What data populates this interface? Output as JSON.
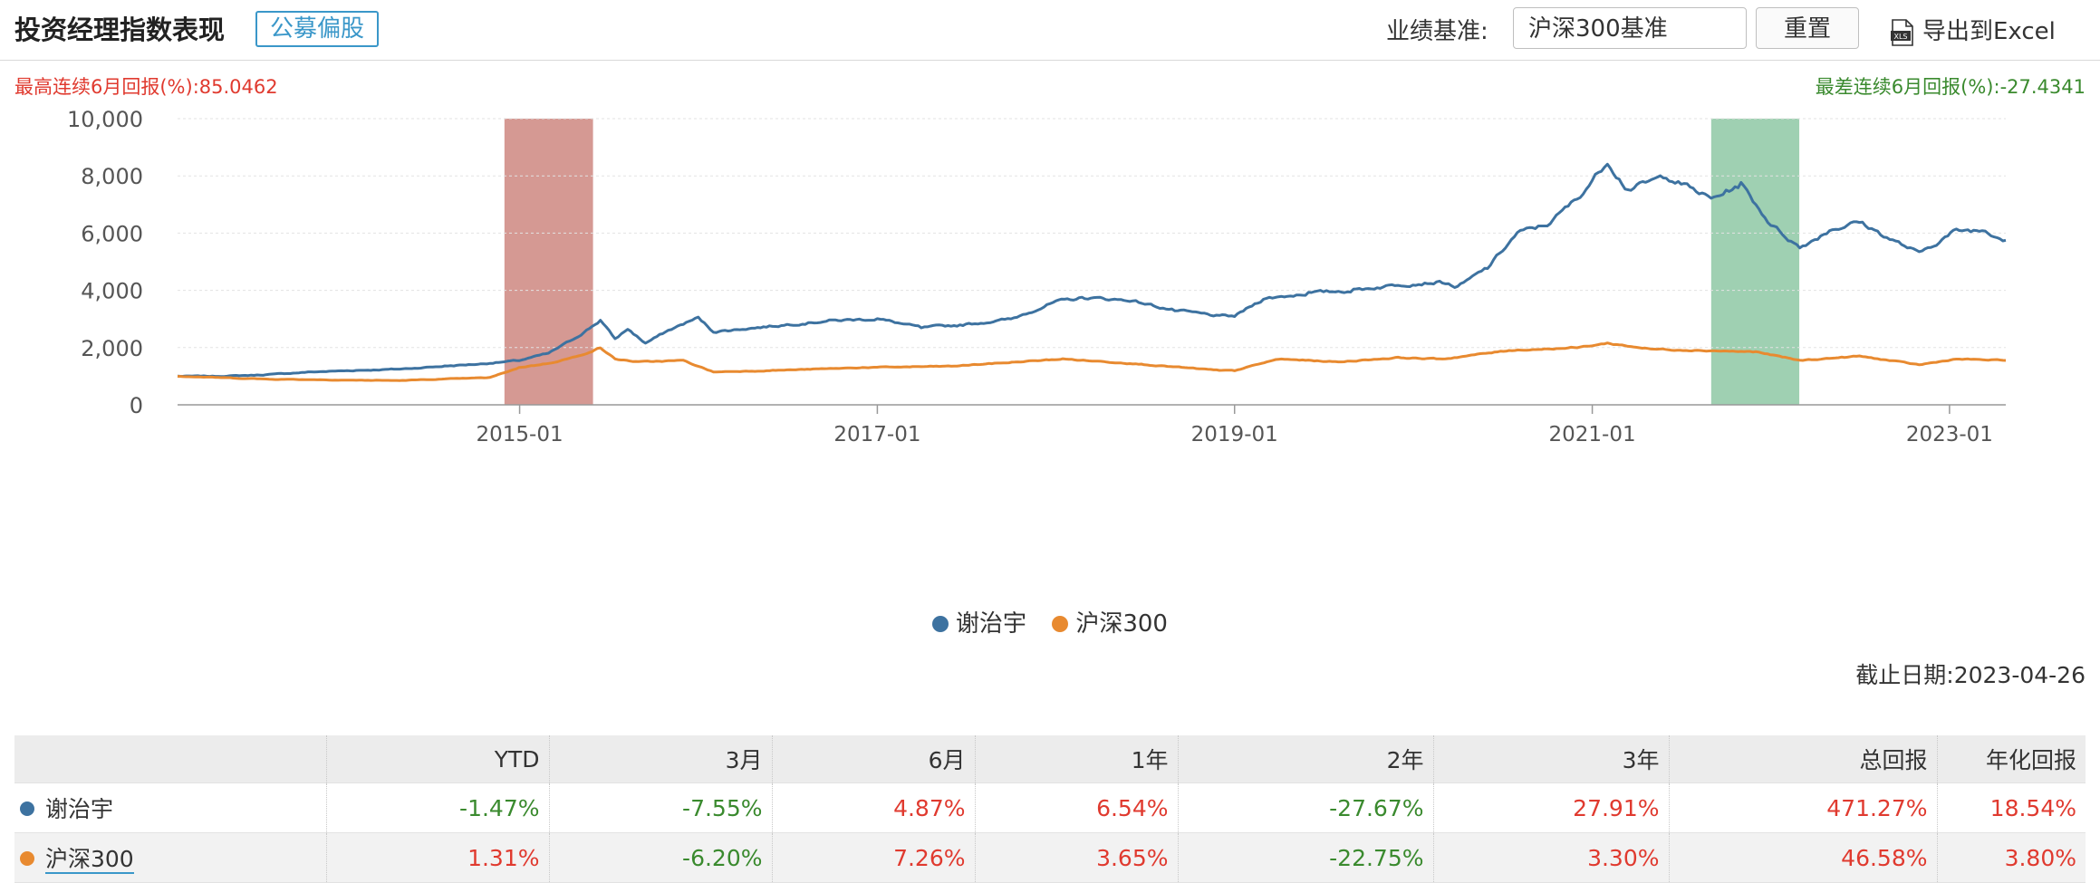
{
  "header": {
    "title": "投资经理指数表现",
    "tag": "公募偏股",
    "benchmark_label": "业绩基准:",
    "benchmark_value": "沪深300基准",
    "reset_label": "重置",
    "export_label": "导出到Excel"
  },
  "summary": {
    "best": "最高连续6月回报(%):85.0462",
    "worst": "最差连续6月回报(%):-27.4341"
  },
  "colors": {
    "manager": "#3d72a0",
    "index": "#e88a30",
    "best_band": "#d59993",
    "worst_band": "#9fd0b2",
    "up": "#e03a2f",
    "down": "#3a8a2e"
  },
  "legend": {
    "manager": "谢治宇",
    "index": "沪深300"
  },
  "asof": "截止日期:2023-04-26",
  "table": {
    "headers": [
      "",
      "YTD",
      "3月",
      "6月",
      "1年",
      "2年",
      "3年",
      "总回报",
      "年化回报"
    ],
    "rows": [
      {
        "name": "谢治宇",
        "values": [
          "-1.47%",
          "-7.55%",
          "4.87%",
          "6.54%",
          "-27.67%",
          "27.91%",
          "471.27%",
          "18.54%"
        ]
      },
      {
        "name": "沪深300",
        "values": [
          "1.31%",
          "-6.20%",
          "7.26%",
          "3.65%",
          "-22.75%",
          "3.30%",
          "46.58%",
          "3.80%"
        ]
      }
    ]
  },
  "chart_data": {
    "type": "line",
    "x_range": [
      "2013-02-01",
      "2023-04-26"
    ],
    "ylim": [
      0,
      10000
    ],
    "yticks": [
      "0",
      "2,000",
      "4,000",
      "6,000",
      "8,000",
      "10,000"
    ],
    "xticks": [
      {
        "date": "2015-01-01",
        "label": "2015-01"
      },
      {
        "date": "2017-01-01",
        "label": "2017-01"
      },
      {
        "date": "2019-01-01",
        "label": "2019-01"
      },
      {
        "date": "2021-01-01",
        "label": "2021-01"
      },
      {
        "date": "2023-01-01",
        "label": "2023-01"
      }
    ],
    "grid": true,
    "legend_position": "bottom",
    "bands": [
      {
        "from": "2014-12-01",
        "to": "2015-05-31",
        "label": "best",
        "color": "#d59993"
      },
      {
        "from": "2021-09-01",
        "to": "2022-02-28",
        "label": "worst",
        "color": "#9fd0b2"
      }
    ],
    "series": [
      {
        "name": "谢治宇",
        "color": "#3d72a0",
        "points": [
          [
            "2013-02-01",
            1000
          ],
          [
            "2013-05-01",
            1000
          ],
          [
            "2013-08-01",
            1050
          ],
          [
            "2013-11-01",
            1150
          ],
          [
            "2014-02-01",
            1200
          ],
          [
            "2014-05-01",
            1250
          ],
          [
            "2014-08-01",
            1350
          ],
          [
            "2014-11-01",
            1450
          ],
          [
            "2014-12-31",
            1550
          ],
          [
            "2015-03-01",
            1800
          ],
          [
            "2015-05-01",
            2400
          ],
          [
            "2015-06-15",
            2950
          ],
          [
            "2015-07-15",
            2300
          ],
          [
            "2015-08-10",
            2650
          ],
          [
            "2015-09-15",
            2150
          ],
          [
            "2015-11-01",
            2600
          ],
          [
            "2016-01-01",
            3050
          ],
          [
            "2016-02-01",
            2550
          ],
          [
            "2016-04-01",
            2650
          ],
          [
            "2016-07-01",
            2800
          ],
          [
            "2016-10-01",
            2950
          ],
          [
            "2017-01-01",
            3000
          ],
          [
            "2017-04-01",
            2700
          ],
          [
            "2017-07-01",
            2800
          ],
          [
            "2017-10-01",
            3000
          ],
          [
            "2018-01-01",
            3600
          ],
          [
            "2018-03-01",
            3750
          ],
          [
            "2018-06-01",
            3650
          ],
          [
            "2018-09-01",
            3300
          ],
          [
            "2018-12-01",
            3100
          ],
          [
            "2019-01-01",
            3100
          ],
          [
            "2019-03-01",
            3700
          ],
          [
            "2019-06-01",
            3900
          ],
          [
            "2019-09-01",
            4000
          ],
          [
            "2019-12-01",
            4200
          ],
          [
            "2020-03-01",
            4300
          ],
          [
            "2020-04-01",
            4100
          ],
          [
            "2020-06-01",
            4800
          ],
          [
            "2020-08-01",
            6000
          ],
          [
            "2020-10-01",
            6300
          ],
          [
            "2020-12-01",
            7200
          ],
          [
            "2021-02-01",
            8500
          ],
          [
            "2021-03-15",
            7500
          ],
          [
            "2021-06-01",
            8000
          ],
          [
            "2021-09-01",
            7200
          ],
          [
            "2021-11-01",
            7700
          ],
          [
            "2022-01-01",
            6300
          ],
          [
            "2022-03-01",
            5500
          ],
          [
            "2022-05-01",
            6100
          ],
          [
            "2022-07-01",
            6400
          ],
          [
            "2022-09-01",
            5800
          ],
          [
            "2022-10-31",
            5300
          ],
          [
            "2023-01-15",
            6100
          ],
          [
            "2023-03-15",
            6100
          ],
          [
            "2023-04-26",
            5750
          ]
        ]
      },
      {
        "name": "沪深300",
        "color": "#e88a30",
        "points": [
          [
            "2013-02-01",
            1000
          ],
          [
            "2013-05-01",
            950
          ],
          [
            "2013-08-01",
            900
          ],
          [
            "2013-11-01",
            880
          ],
          [
            "2014-02-01",
            860
          ],
          [
            "2014-05-01",
            850
          ],
          [
            "2014-08-01",
            900
          ],
          [
            "2014-11-01",
            950
          ],
          [
            "2014-12-31",
            1300
          ],
          [
            "2015-03-01",
            1450
          ],
          [
            "2015-05-01",
            1700
          ],
          [
            "2015-06-15",
            2000
          ],
          [
            "2015-07-15",
            1600
          ],
          [
            "2015-09-01",
            1500
          ],
          [
            "2015-12-01",
            1550
          ],
          [
            "2016-02-01",
            1150
          ],
          [
            "2016-06-01",
            1200
          ],
          [
            "2016-12-01",
            1300
          ],
          [
            "2017-06-01",
            1350
          ],
          [
            "2017-12-01",
            1550
          ],
          [
            "2018-01-15",
            1600
          ],
          [
            "2018-06-01",
            1450
          ],
          [
            "2018-12-01",
            1200
          ],
          [
            "2019-01-01",
            1200
          ],
          [
            "2019-04-01",
            1600
          ],
          [
            "2019-08-01",
            1500
          ],
          [
            "2019-12-01",
            1650
          ],
          [
            "2020-03-01",
            1600
          ],
          [
            "2020-07-15",
            1900
          ],
          [
            "2020-12-01",
            2000
          ],
          [
            "2021-02-01",
            2150
          ],
          [
            "2021-05-01",
            1950
          ],
          [
            "2021-12-01",
            1850
          ],
          [
            "2022-03-01",
            1550
          ],
          [
            "2022-07-01",
            1700
          ],
          [
            "2022-10-31",
            1400
          ],
          [
            "2023-01-15",
            1600
          ],
          [
            "2023-04-26",
            1550
          ]
        ]
      }
    ]
  }
}
